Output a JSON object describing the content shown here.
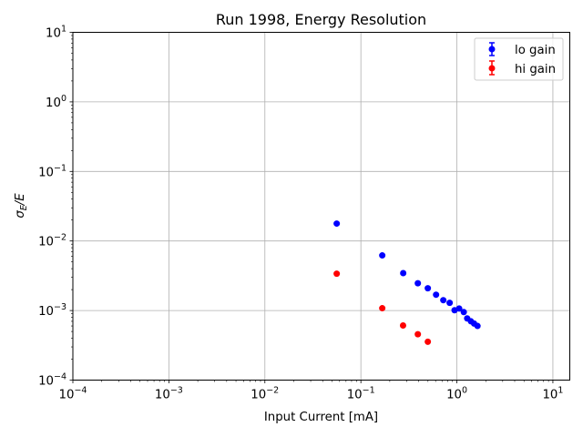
{
  "chart_data": {
    "type": "scatter",
    "title": "Run 1998, Energy Resolution",
    "xlabel": "Input Current [mA]",
    "ylabel_main": "σ",
    "ylabel_sub": "E",
    "ylabel_tail": "/E",
    "xscale": "log",
    "yscale": "log",
    "xlim": [
      0.0001,
      15
    ],
    "ylim": [
      0.0001,
      10
    ],
    "grid": true,
    "legend_position": "top-right",
    "x_ticks": [
      {
        "value": 0.0001,
        "base": "10",
        "exp": "−4"
      },
      {
        "value": 0.001,
        "base": "10",
        "exp": "−3"
      },
      {
        "value": 0.01,
        "base": "10",
        "exp": "−2"
      },
      {
        "value": 0.1,
        "base": "10",
        "exp": "−1"
      },
      {
        "value": 1,
        "base": "10",
        "exp": "0"
      },
      {
        "value": 10,
        "base": "10",
        "exp": "1"
      }
    ],
    "y_ticks": [
      {
        "value": 0.0001,
        "base": "10",
        "exp": "−4"
      },
      {
        "value": 0.001,
        "base": "10",
        "exp": "−3"
      },
      {
        "value": 0.01,
        "base": "10",
        "exp": "−2"
      },
      {
        "value": 0.1,
        "base": "10",
        "exp": "−1"
      },
      {
        "value": 1,
        "base": "10",
        "exp": "0"
      },
      {
        "value": 10,
        "base": "10",
        "exp": "1"
      }
    ],
    "series": [
      {
        "name": "lo gain",
        "color": "#0000ff",
        "x": [
          0.056,
          0.167,
          0.276,
          0.392,
          0.498,
          0.607,
          0.722,
          0.841,
          0.946,
          1.056,
          1.18,
          1.28,
          1.4,
          1.51,
          1.64
        ],
        "y": [
          0.0178,
          0.0062,
          0.00345,
          0.00247,
          0.00209,
          0.00169,
          0.00141,
          0.00129,
          0.00101,
          0.00107,
          0.00095,
          0.00077,
          0.0007,
          0.00065,
          0.0006
        ]
      },
      {
        "name": "hi gain",
        "color": "#ff0000",
        "x": [
          0.056,
          0.167,
          0.275,
          0.392,
          0.498
        ],
        "y": [
          0.00339,
          0.00108,
          0.00061,
          0.000456,
          0.000356
        ]
      }
    ]
  }
}
